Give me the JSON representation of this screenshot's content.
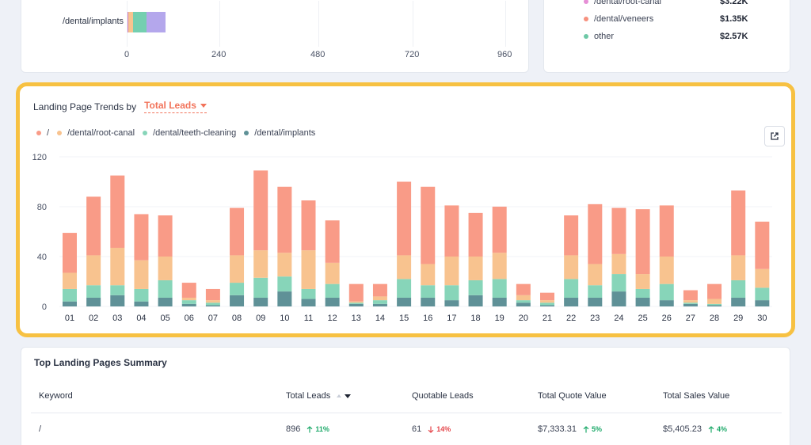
{
  "top_left": {
    "bar_label": "/dental/implants",
    "bar_segments": [
      {
        "value": 3,
        "color": "#c97bc2"
      },
      {
        "value": 12,
        "color": "#f8c38f"
      },
      {
        "value": 34,
        "color": "#74cfb0"
      },
      {
        "value": 47,
        "color": "#b4a7ec"
      }
    ],
    "axis_max": 960,
    "ticks": [
      "0",
      "240",
      "480",
      "720",
      "960"
    ]
  },
  "top_right": {
    "rows": [
      {
        "label": "/dental/root-canal",
        "value": "$3.22K",
        "color": "#e68fd6"
      },
      {
        "label": "/dental/veneers",
        "value": "$1.35K",
        "color": "#f7917e"
      },
      {
        "label": "other",
        "value": "$2.57K",
        "color": "#6dc8a6"
      }
    ]
  },
  "trends": {
    "title": "Landing Page Trends by",
    "metric": "Total Leads",
    "external_label": "Open in new window"
  },
  "chart_data": {
    "type": "bar",
    "stacked": true,
    "title": "Landing Page Trends by Total Leads",
    "ylim": [
      0,
      120
    ],
    "yticks": [
      "0",
      "40",
      "80",
      "120"
    ],
    "categories": [
      "01",
      "02",
      "03",
      "04",
      "05",
      "06",
      "07",
      "08",
      "09",
      "10",
      "11",
      "12",
      "13",
      "14",
      "15",
      "16",
      "17",
      "18",
      "19",
      "20",
      "21",
      "22",
      "23",
      "24",
      "25",
      "26",
      "27",
      "28",
      "29",
      "30"
    ],
    "series": [
      {
        "name": "/dental/implants",
        "color": "#5f9197",
        "values": [
          4,
          7,
          9,
          4,
          7,
          2,
          1,
          9,
          7,
          12,
          6,
          7,
          2,
          2,
          7,
          7,
          5,
          9,
          7,
          3,
          1,
          7,
          7,
          12,
          7,
          5,
          2,
          1,
          7,
          5
        ]
      },
      {
        "name": "/dental/teeth-cleaning",
        "color": "#87d5b9",
        "values": [
          10,
          10,
          8,
          10,
          14,
          3,
          2,
          10,
          16,
          12,
          8,
          11,
          1,
          3,
          15,
          10,
          12,
          12,
          15,
          2,
          2,
          15,
          10,
          14,
          7,
          13,
          1,
          1,
          14,
          10
        ]
      },
      {
        "name": "/dental/root-canal",
        "color": "#f8c38f",
        "values": [
          13,
          24,
          30,
          23,
          19,
          2,
          2,
          22,
          22,
          19,
          31,
          17,
          1,
          3,
          19,
          17,
          23,
          19,
          21,
          4,
          2,
          19,
          17,
          16,
          12,
          22,
          2,
          4,
          20,
          15
        ]
      },
      {
        "name": "/",
        "color": "#f99b87",
        "values": [
          32,
          47,
          58,
          37,
          33,
          12,
          9,
          38,
          64,
          53,
          40,
          34,
          14,
          10,
          59,
          62,
          41,
          35,
          37,
          9,
          6,
          32,
          48,
          37,
          52,
          41,
          8,
          12,
          52,
          38
        ]
      }
    ],
    "legend": [
      "/",
      "/dental/root-canal",
      "/dental/teeth-cleaning",
      "/dental/implants"
    ]
  },
  "summary": {
    "title": "Top Landing Pages Summary",
    "columns": [
      "Keyword",
      "Total Leads",
      "Quotable Leads",
      "Total Quote Value",
      "Total Sales Value"
    ],
    "row": {
      "keyword": "/",
      "total_leads": "896",
      "total_leads_chg": "11%",
      "quotable_leads": "61",
      "quotable_leads_chg": "14%",
      "quote_value": "$7,333.31",
      "quote_value_chg": "5%",
      "sales_value": "$5,405.23",
      "sales_value_chg": "4%"
    }
  }
}
